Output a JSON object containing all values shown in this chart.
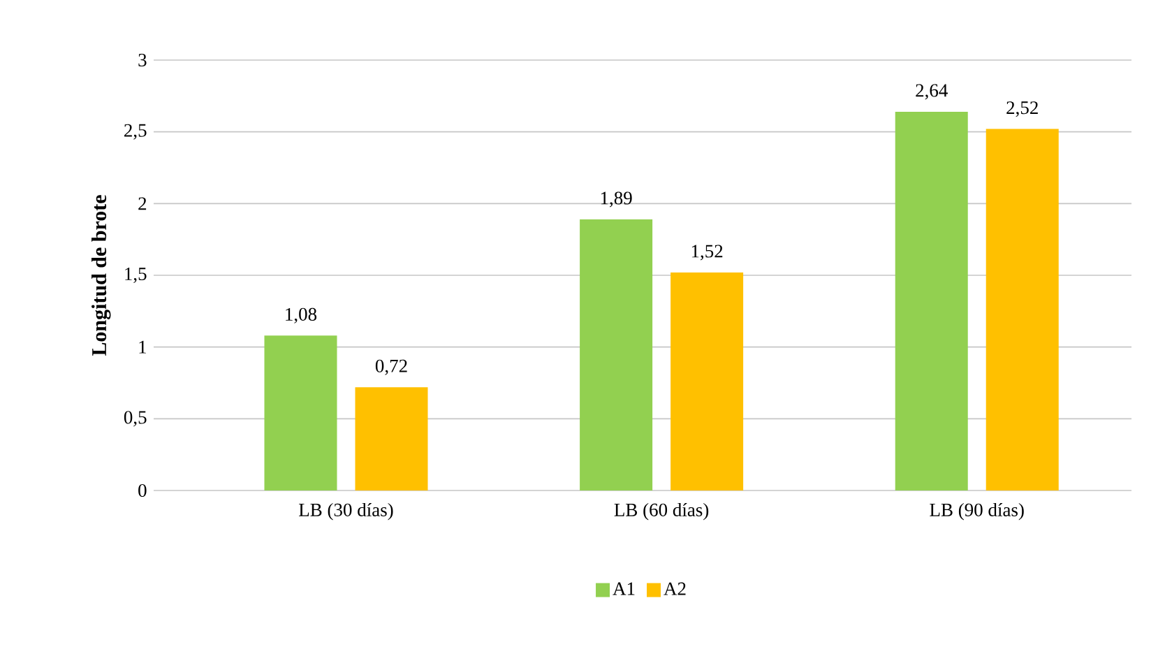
{
  "chart_data": {
    "type": "bar",
    "categories": [
      "LB (30 días)",
      "LB (60 días)",
      "LB (90 días)"
    ],
    "series": [
      {
        "name": "A1",
        "color": "#92d050",
        "values": [
          1.08,
          1.89,
          2.64
        ],
        "value_labels": [
          "1,08",
          "1,89",
          "2,64"
        ]
      },
      {
        "name": "A2",
        "color": "#ffc000",
        "values": [
          0.72,
          1.52,
          2.52
        ],
        "value_labels": [
          "0,72",
          "1,52",
          "2,52"
        ]
      }
    ],
    "ylabel": "Longitud de brote",
    "ylim": [
      0,
      3
    ],
    "yticks": [
      0,
      {
        "value": 0.5,
        "label": "0,5"
      },
      1,
      {
        "value": 1.5,
        "label": "1,5"
      },
      2,
      {
        "value": 2.5,
        "label": "2,5"
      },
      3
    ],
    "grid": "y",
    "legend": "bottom"
  }
}
